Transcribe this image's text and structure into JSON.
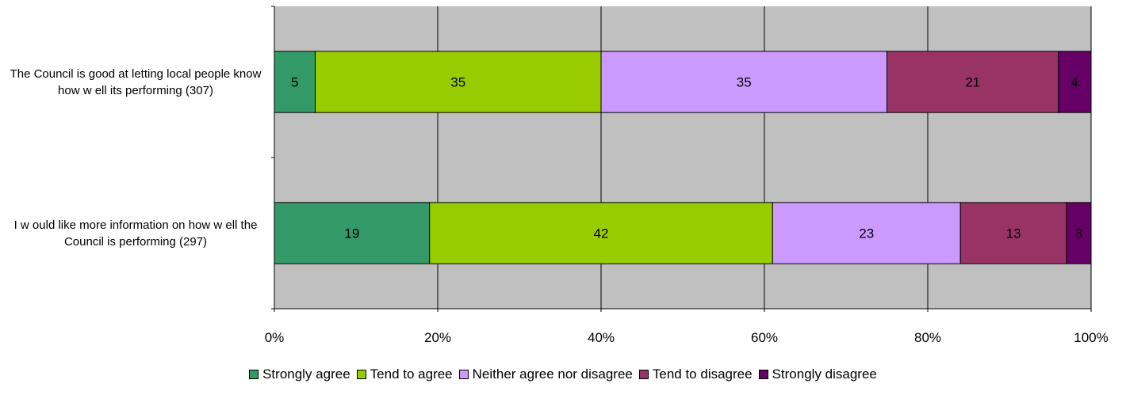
{
  "chart_data": {
    "type": "bar",
    "orientation": "horizontal",
    "stacked": "percent",
    "categories": [
      "The Council is good at letting local people know  how  w ell its performing (307)",
      "I w ould like more information on how  w ell the Council is performing (297)"
    ],
    "series": [
      {
        "name": "Strongly agree",
        "values": [
          5,
          19
        ],
        "color": "#339966"
      },
      {
        "name": "Tend to agree",
        "values": [
          35,
          42
        ],
        "color": "#99cc00"
      },
      {
        "name": "Neither agree nor disagree",
        "values": [
          35,
          23
        ],
        "color": "#cc99ff"
      },
      {
        "name": "Tend to disagree",
        "values": [
          21,
          13
        ],
        "color": "#993366"
      },
      {
        "name": "Strongly disagree",
        "values": [
          4,
          3
        ],
        "color": "#660066"
      }
    ],
    "xlim": [
      0,
      100
    ],
    "xticks": [
      "0%",
      "20%",
      "40%",
      "60%",
      "80%",
      "100%"
    ],
    "grid": true,
    "plot_background": "#c0c0c0",
    "legend_position": "bottom"
  }
}
